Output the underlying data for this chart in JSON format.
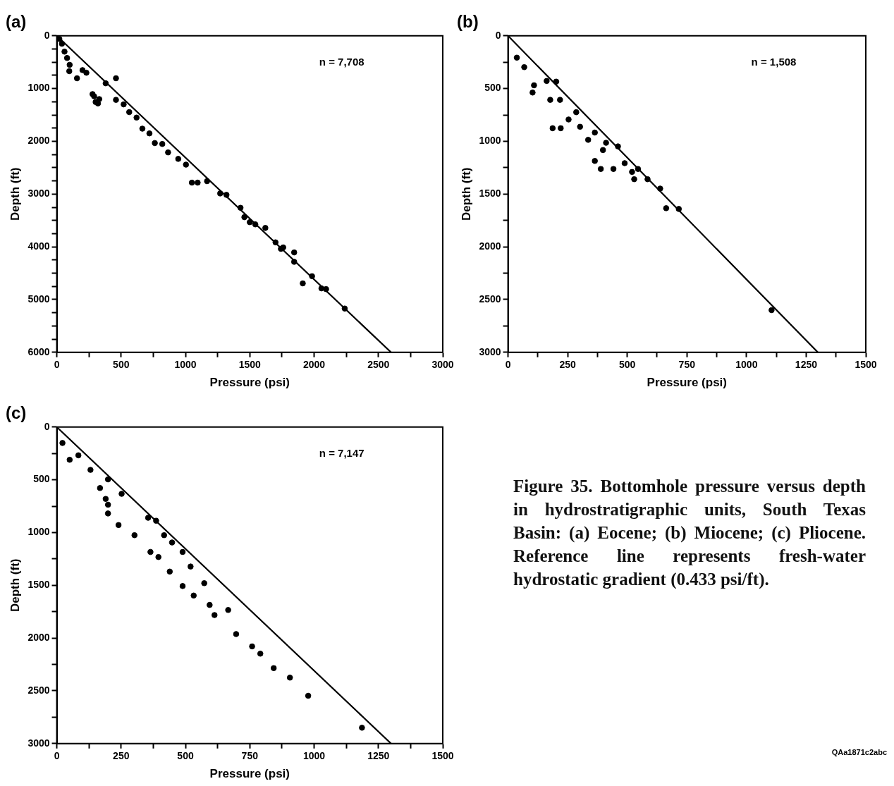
{
  "chart_data": [
    {
      "type": "scatter",
      "title": "(a)",
      "xlabel": "Pressure (psi)",
      "ylabel": "Depth (ft)",
      "xlim": [
        0,
        3000
      ],
      "ylim": [
        6000,
        0
      ],
      "xticks": [
        0,
        {
          "value": 250,
          "label": null
        },
        500,
        {
          "value": 750,
          "label": null
        },
        1000,
        {
          "value": 1250,
          "label": null
        },
        1500,
        {
          "value": 1750,
          "label": null
        },
        2000,
        {
          "value": 2250,
          "label": null
        },
        2500,
        {
          "value": 2750,
          "label": null
        },
        3000
      ],
      "yticks": [
        0,
        {
          "value": 250,
          "label": null
        },
        {
          "value": 500,
          "label": null
        },
        {
          "value": 750,
          "label": null
        },
        1000,
        {
          "value": 1250,
          "label": null
        },
        {
          "value": 1500,
          "label": null
        },
        {
          "value": 1750,
          "label": null
        },
        2000,
        {
          "value": 2250,
          "label": null
        },
        {
          "value": 2500,
          "label": null
        },
        {
          "value": 2750,
          "label": null
        },
        3000,
        {
          "value": 3250,
          "label": null
        },
        {
          "value": 3500,
          "label": null
        },
        {
          "value": 3750,
          "label": null
        },
        4000,
        {
          "value": 4250,
          "label": null
        },
        {
          "value": 4500,
          "label": null
        },
        {
          "value": 4750,
          "label": null
        },
        5000,
        {
          "value": 5250,
          "label": null
        },
        {
          "value": 5500,
          "label": null
        },
        {
          "value": 5750,
          "label": null
        },
        6000
      ],
      "marker": "circle",
      "annotations": [
        "n = 7,708"
      ],
      "series": [
        {
          "type": "scatter",
          "color": "#000000",
          "x": [
            20,
            40,
            60,
            80,
            100,
            97,
            157,
            200,
            230,
            278,
            290,
            302,
            320,
            330,
            380,
            460,
            460,
            520,
            563,
            620,
            665,
            720,
            762,
            820,
            865,
            944,
            1004,
            1050,
            1095,
            1168,
            1270,
            1319,
            1428,
            1458,
            1500,
            1543,
            1621,
            1700,
            1742,
            1760,
            1845,
            1845,
            1912,
            1984,
            2057,
            2093,
            2238
          ],
          "values": [
            60,
            150,
            300,
            420,
            550,
            670,
            805,
            650,
            700,
            1105,
            1146,
            1255,
            1282,
            1200,
            900,
            805,
            1214,
            1300,
            1446,
            1550,
            1760,
            1850,
            2033,
            2050,
            2210,
            2333,
            2442,
            2783,
            2783,
            2756,
            2988,
            3015,
            3260,
            3438,
            3533,
            3574,
            3642,
            3915,
            4038,
            4011,
            4106,
            4284,
            4693,
            4557,
            4788,
            4802,
            5170
          ]
        },
        {
          "type": "line",
          "marker": "none",
          "color": "#000000",
          "x": [
            0,
            2598
          ],
          "values": [
            0,
            6000
          ]
        }
      ]
    },
    {
      "type": "scatter",
      "title": "(b)",
      "xlabel": "Pressure (psi)",
      "ylabel": "Depth (ft)",
      "xlim": [
        0,
        1500
      ],
      "ylim": [
        3000,
        0
      ],
      "xticks": [
        0,
        {
          "value": 125,
          "label": null
        },
        250,
        {
          "value": 375,
          "label": null
        },
        500,
        {
          "value": 625,
          "label": null
        },
        750,
        {
          "value": 875,
          "label": null
        },
        1000,
        {
          "value": 1125,
          "label": null
        },
        1250,
        {
          "value": 1375,
          "label": null
        },
        1500
      ],
      "yticks": [
        0,
        {
          "value": 250,
          "label": null
        },
        500,
        {
          "value": 750,
          "label": null
        },
        1000,
        {
          "value": 1250,
          "label": null
        },
        1500,
        {
          "value": 1750,
          "label": null
        },
        2000,
        {
          "value": 2250,
          "label": null
        },
        2500,
        {
          "value": 2750,
          "label": null
        },
        3000
      ],
      "marker": "circle",
      "annotations": [
        "n = 1,508"
      ],
      "series": [
        {
          "type": "scatter",
          "color": "#000000",
          "x": [
            37,
            68,
            103,
            109,
            162,
            202,
            177,
            218,
            187,
            221,
            254,
            286,
            302,
            336,
            364,
            411,
            398,
            364,
            389,
            442,
            461,
            489,
            520,
            529,
            545,
            585,
            638,
            663,
            716,
            1105
          ],
          "values": [
            207,
            297,
            538,
            469,
            428,
            434,
            607,
            607,
            876,
            876,
            793,
            724,
            862,
            986,
            917,
            1014,
            1083,
            1186,
            1262,
            1262,
            1048,
            1207,
            1290,
            1359,
            1262,
            1359,
            1448,
            1634,
            1641,
            2600
          ]
        },
        {
          "type": "line",
          "marker": "none",
          "color": "#000000",
          "x": [
            0,
            1299
          ],
          "values": [
            0,
            3000
          ]
        }
      ]
    },
    {
      "type": "scatter",
      "title": "(c)",
      "xlabel": "Pressure (psi)",
      "ylabel": "Depth (ft)",
      "xlim": [
        0,
        1500
      ],
      "ylim": [
        3000,
        0
      ],
      "xticks": [
        0,
        {
          "value": 125,
          "label": null
        },
        250,
        {
          "value": 375,
          "label": null
        },
        500,
        {
          "value": 625,
          "label": null
        },
        750,
        {
          "value": 875,
          "label": null
        },
        1000,
        {
          "value": 1125,
          "label": null
        },
        1250,
        {
          "value": 1375,
          "label": null
        },
        1500
      ],
      "yticks": [
        0,
        {
          "value": 250,
          "label": null
        },
        500,
        {
          "value": 750,
          "label": null
        },
        1000,
        {
          "value": 1250,
          "label": null
        },
        1500,
        {
          "value": 1750,
          "label": null
        },
        2000,
        {
          "value": 2250,
          "label": null
        },
        2500,
        {
          "value": 2750,
          "label": null
        },
        3000
      ],
      "marker": "circle",
      "annotations": [
        "n = 7,147"
      ],
      "series": [
        {
          "type": "scatter",
          "color": "#000000",
          "x": [
            22,
            50,
            84,
            131,
            199,
            168,
            190,
            199,
            252,
            199,
            240,
            302,
            355,
            386,
            364,
            417,
            448,
            489,
            395,
            439,
            520,
            489,
            532,
            573,
            594,
            613,
            666,
            697,
            759,
            791,
            843,
            906,
            977,
            1186
          ],
          "values": [
            151,
            310,
            268,
            406,
            496,
            578,
            681,
            736,
            633,
            819,
            929,
            1025,
            860,
            888,
            1184,
            1025,
            1094,
            1184,
            1232,
            1370,
            1322,
            1507,
            1597,
            1480,
            1686,
            1782,
            1734,
            1962,
            2079,
            2148,
            2285,
            2375,
            2547,
            2850
          ]
        },
        {
          "type": "line",
          "marker": "none",
          "color": "#000000",
          "x": [
            0,
            1299
          ],
          "values": [
            0,
            3000
          ]
        }
      ]
    },
    {
      "type": "other",
      "annotations": [
        "Figure 35. Bottomhole pressure versus depth in hydrostratigraphic units, South Texas Basin: (a) Eocene; (b) Miocene; (c) Pliocene. Reference line represents fresh-water hydrostatic gradient (0.433 psi/ft).",
        "QAa1871c2abc"
      ]
    }
  ]
}
